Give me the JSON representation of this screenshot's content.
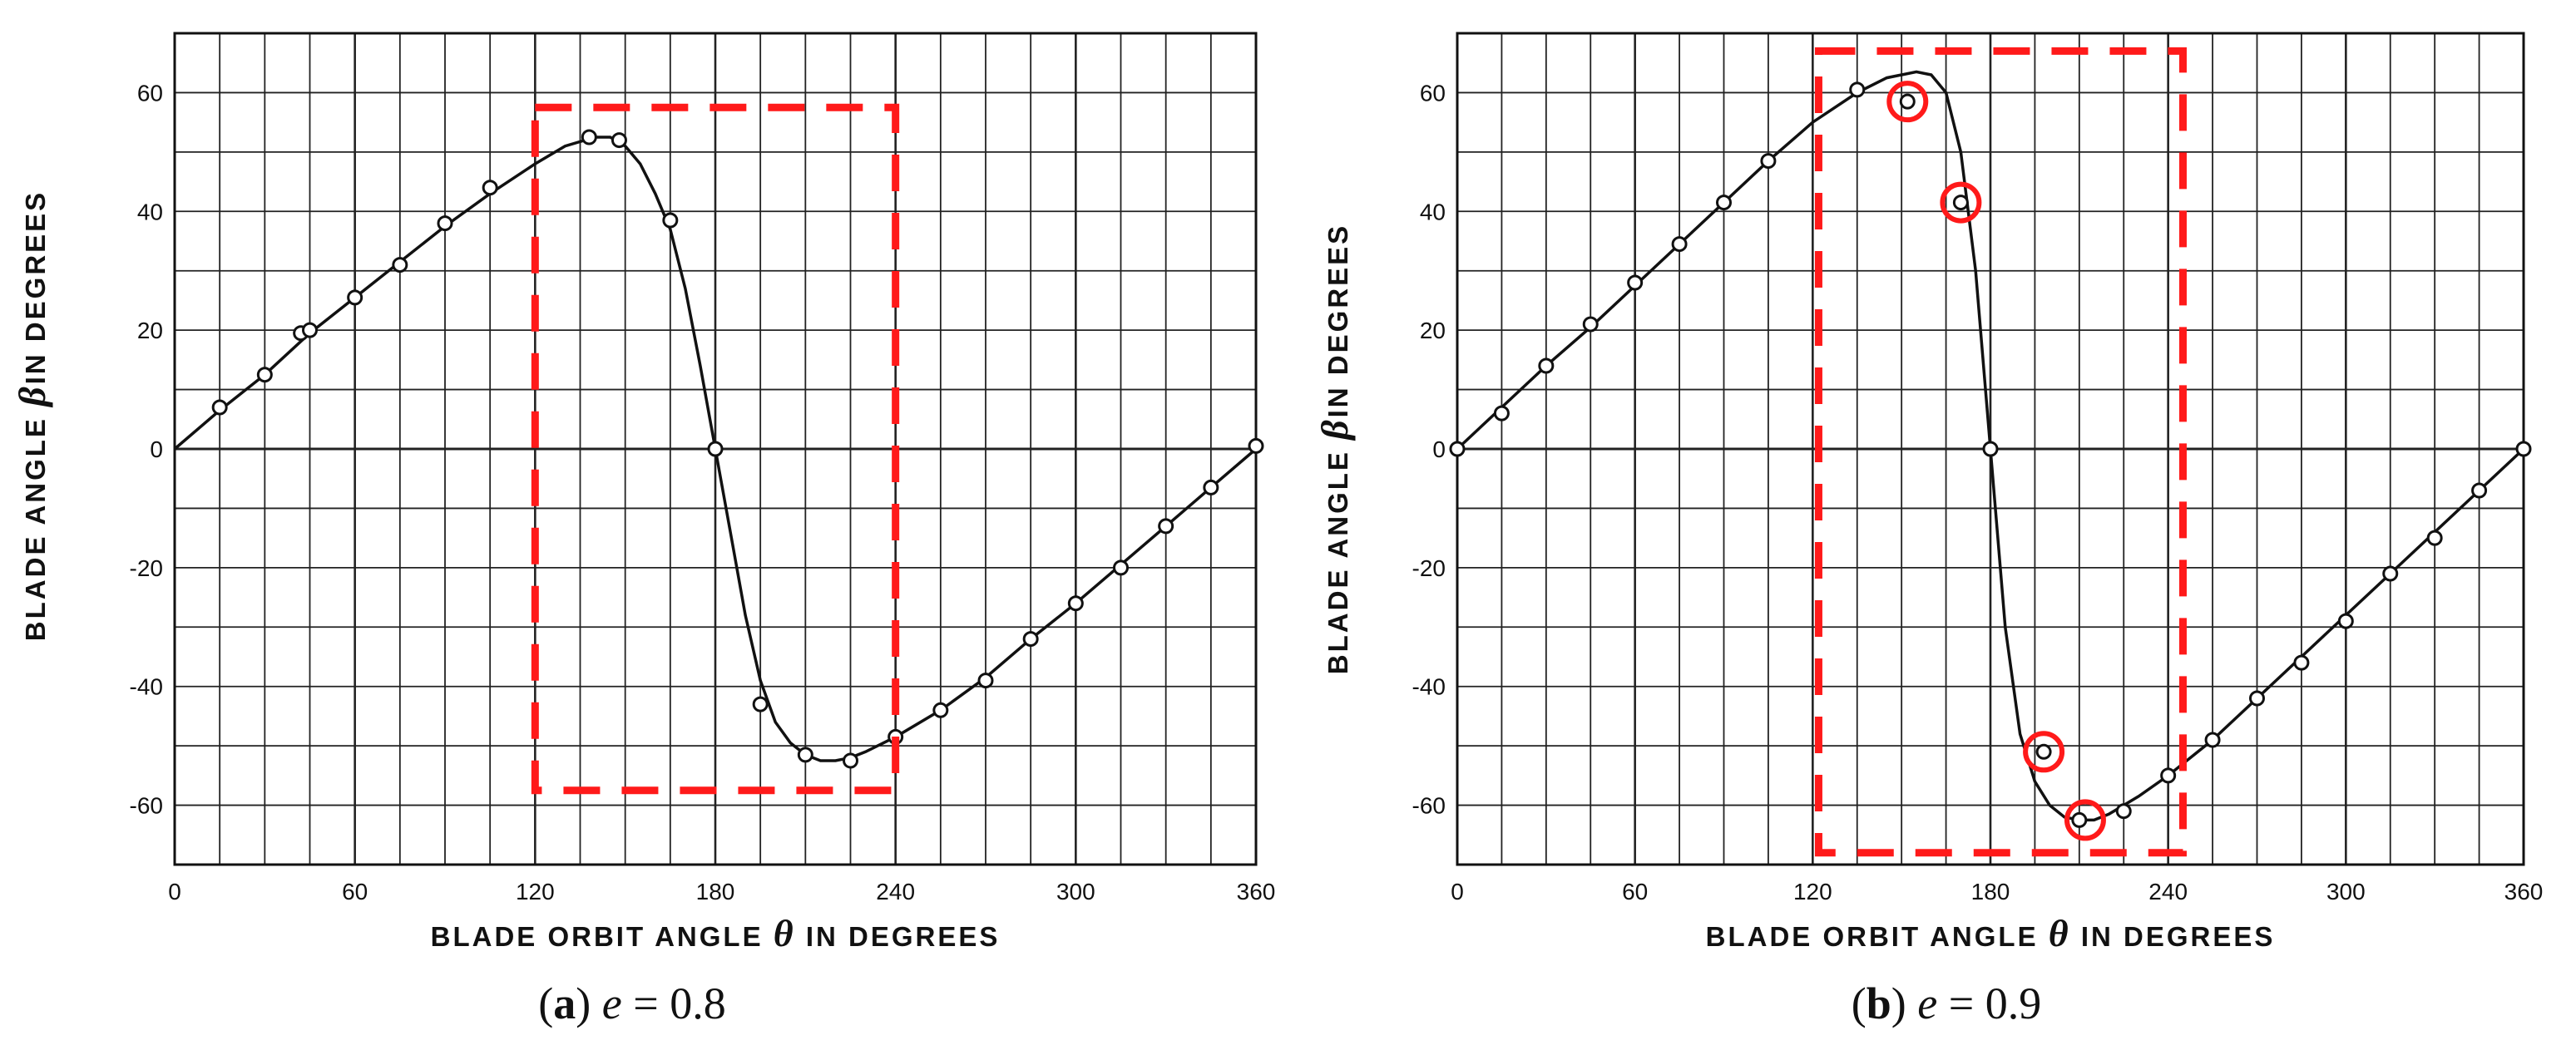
{
  "chart_data": [
    {
      "type": "line",
      "panel_tag": "a",
      "caption_var": "e",
      "caption_value": "= 0.8",
      "xlabel": "BLADE ORBIT ANGLE",
      "xlabel_symbol": "θ",
      "xlabel_unit": "IN DEGREES",
      "ylabel": "BLADE ANGLE",
      "ylabel_symbol": "β",
      "ylabel_unit": "IN DEGREES",
      "xlim": [
        0,
        360
      ],
      "ylim": [
        -70,
        70
      ],
      "xticks": [
        0,
        60,
        120,
        180,
        240,
        300,
        360
      ],
      "yticks": [
        -60,
        -40,
        -20,
        0,
        20,
        40,
        60
      ],
      "grid": true,
      "curve": [
        [
          0,
          0
        ],
        [
          15,
          6.5
        ],
        [
          30,
          12.5
        ],
        [
          45,
          19.5
        ],
        [
          60,
          25.5
        ],
        [
          75,
          31.5
        ],
        [
          90,
          37.5
        ],
        [
          105,
          43
        ],
        [
          120,
          48
        ],
        [
          130,
          51
        ],
        [
          140,
          52.5
        ],
        [
          145,
          52.5
        ],
        [
          150,
          51
        ],
        [
          155,
          48
        ],
        [
          160,
          43
        ],
        [
          165,
          37
        ],
        [
          170,
          27
        ],
        [
          175,
          14
        ],
        [
          180,
          0
        ],
        [
          185,
          -14
        ],
        [
          190,
          -28
        ],
        [
          195,
          -39
        ],
        [
          200,
          -46
        ],
        [
          205,
          -49.5
        ],
        [
          210,
          -51.5
        ],
        [
          215,
          -52.5
        ],
        [
          220,
          -52.5
        ],
        [
          225,
          -52
        ],
        [
          230,
          -51
        ],
        [
          240,
          -48.5
        ],
        [
          255,
          -44
        ],
        [
          270,
          -38.5
        ],
        [
          285,
          -32
        ],
        [
          300,
          -26
        ],
        [
          315,
          -19.5
        ],
        [
          330,
          -13
        ],
        [
          345,
          -6.5
        ],
        [
          360,
          0
        ]
      ],
      "points": [
        [
          15,
          7
        ],
        [
          30,
          12.5
        ],
        [
          42,
          19.5
        ],
        [
          45,
          20
        ],
        [
          60,
          25.5
        ],
        [
          75,
          31
        ],
        [
          90,
          38
        ],
        [
          105,
          44
        ],
        [
          138,
          52.5
        ],
        [
          148,
          52
        ],
        [
          165,
          38.5
        ],
        [
          180,
          0
        ],
        [
          195,
          -43
        ],
        [
          210,
          -51.5
        ],
        [
          225,
          -52.5
        ],
        [
          240,
          -48.5
        ],
        [
          255,
          -44
        ],
        [
          270,
          -39
        ],
        [
          285,
          -32
        ],
        [
          300,
          -26
        ],
        [
          315,
          -20
        ],
        [
          330,
          -13
        ],
        [
          345,
          -6.5
        ],
        [
          360,
          0.5
        ]
      ],
      "circled_points": [],
      "highlight_box": {
        "x": [
          120,
          240
        ],
        "y": [
          -57.5,
          57.5
        ],
        "color": "#ff1a1a"
      }
    },
    {
      "type": "line",
      "panel_tag": "b",
      "caption_var": "e",
      "caption_value": "= 0.9",
      "xlabel": "BLADE ORBIT ANGLE",
      "xlabel_symbol": "θ",
      "xlabel_unit": "IN DEGREES",
      "ylabel": "BLADE ANGLE",
      "ylabel_symbol": "β",
      "ylabel_unit": "IN DEGREES",
      "xlim": [
        0,
        360
      ],
      "ylim": [
        -70,
        70
      ],
      "xticks": [
        0,
        60,
        120,
        180,
        240,
        300,
        360
      ],
      "yticks": [
        -60,
        -40,
        -20,
        0,
        20,
        40,
        60
      ],
      "grid": true,
      "curve": [
        [
          0,
          0
        ],
        [
          15,
          7
        ],
        [
          30,
          14
        ],
        [
          45,
          20.5
        ],
        [
          60,
          27.5
        ],
        [
          75,
          34.5
        ],
        [
          90,
          41.5
        ],
        [
          105,
          48.5
        ],
        [
          120,
          55
        ],
        [
          135,
          60
        ],
        [
          145,
          62.5
        ],
        [
          155,
          63.5
        ],
        [
          160,
          63
        ],
        [
          165,
          60
        ],
        [
          170,
          50
        ],
        [
          175,
          30
        ],
        [
          180,
          0
        ],
        [
          185,
          -30
        ],
        [
          190,
          -48
        ],
        [
          195,
          -56
        ],
        [
          200,
          -60
        ],
        [
          205,
          -62
        ],
        [
          210,
          -62.5
        ],
        [
          215,
          -62.5
        ],
        [
          220,
          -61.5
        ],
        [
          230,
          -58.5
        ],
        [
          240,
          -55
        ],
        [
          255,
          -49
        ],
        [
          270,
          -42
        ],
        [
          285,
          -35
        ],
        [
          300,
          -28
        ],
        [
          315,
          -21
        ],
        [
          330,
          -14
        ],
        [
          345,
          -7
        ],
        [
          360,
          0
        ]
      ],
      "points": [
        [
          0,
          0
        ],
        [
          15,
          6
        ],
        [
          30,
          14
        ],
        [
          45,
          21
        ],
        [
          60,
          28
        ],
        [
          75,
          34.5
        ],
        [
          90,
          41.5
        ],
        [
          105,
          48.5
        ],
        [
          135,
          60.5
        ],
        [
          152,
          58.5
        ],
        [
          170,
          41.5
        ],
        [
          180,
          0
        ],
        [
          198,
          -51
        ],
        [
          210,
          -62.5
        ],
        [
          225,
          -61
        ],
        [
          240,
          -55
        ],
        [
          255,
          -49
        ],
        [
          270,
          -42
        ],
        [
          285,
          -36
        ],
        [
          300,
          -29
        ],
        [
          315,
          -21
        ],
        [
          330,
          -15
        ],
        [
          345,
          -7
        ],
        [
          360,
          0
        ]
      ],
      "circled_points": [
        [
          152,
          58.5
        ],
        [
          170,
          41.5
        ],
        [
          198,
          -51
        ],
        [
          212,
          -62.5
        ]
      ],
      "highlight_box": {
        "x": [
          122,
          245
        ],
        "y": [
          -68,
          67
        ],
        "color": "#ff1a1a"
      }
    }
  ]
}
